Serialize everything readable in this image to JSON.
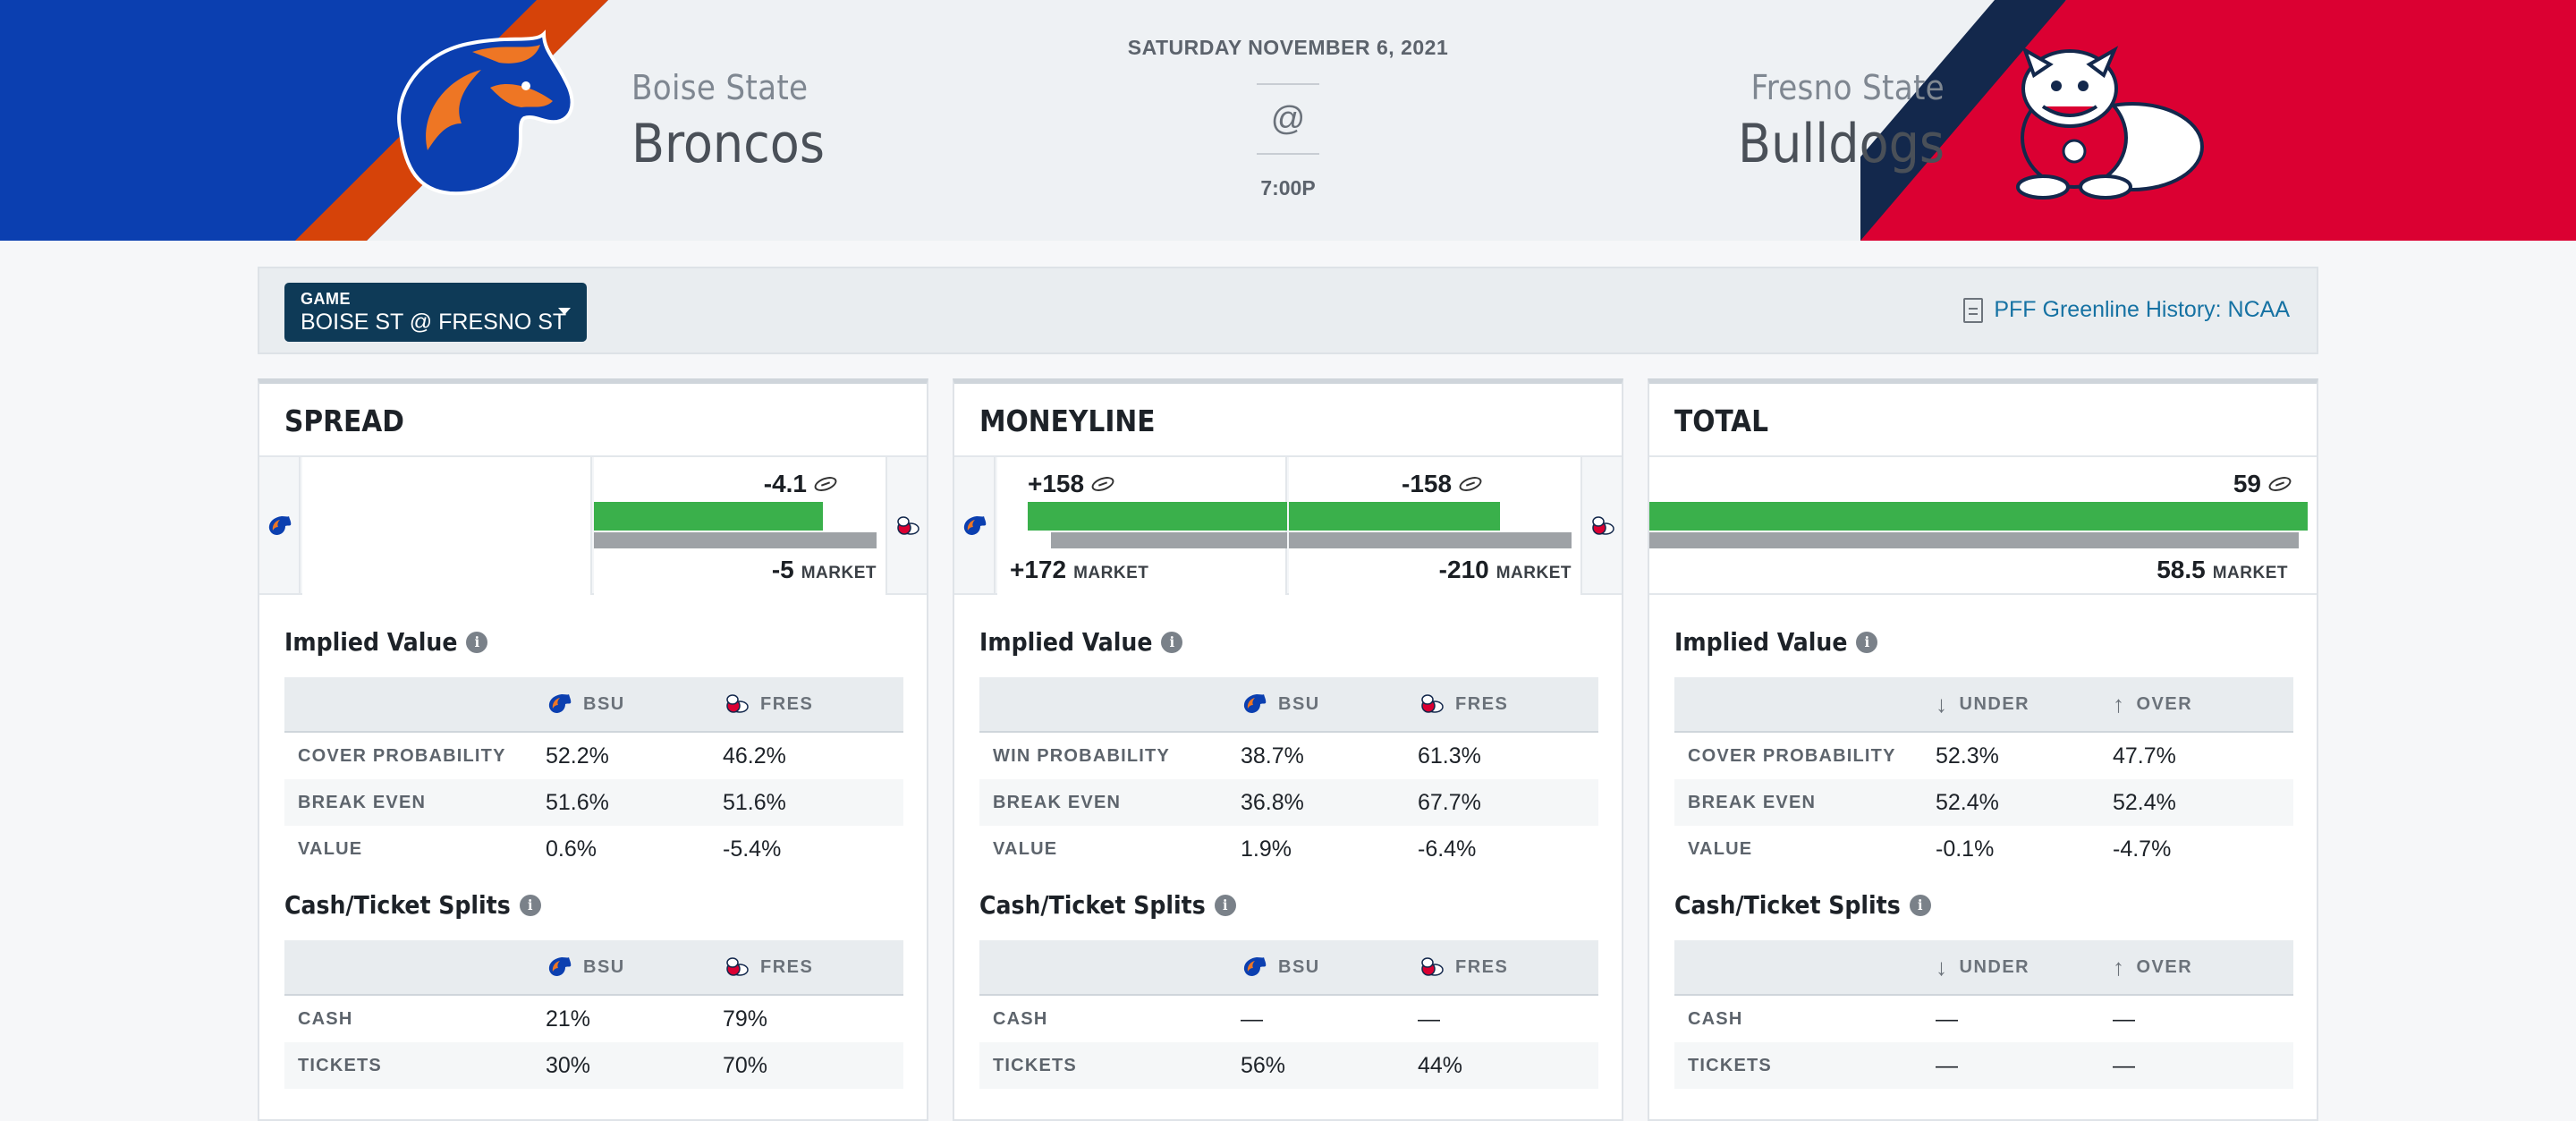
{
  "header": {
    "date": "SATURDAY NOVEMBER 6, 2021",
    "at": "@",
    "time": "7:00P",
    "away": {
      "city": "Boise State",
      "mascot": "Broncos",
      "abbr": "BSU",
      "primary": "#0b3fb0",
      "accent": "#d64309",
      "logo": "bronco-logo-icon"
    },
    "home": {
      "city": "Fresno State",
      "mascot": "Bulldogs",
      "abbr": "FRES",
      "primary": "#db0032",
      "accent": "#13284c",
      "logo": "bulldog-logo-icon"
    }
  },
  "toolbar": {
    "game_label": "GAME",
    "game_value": "BOISE ST @ FRESNO ST",
    "history_link": "PFF Greenline History: NCAA"
  },
  "colors": {
    "greenline": "#3ab04b",
    "market": "#9ea2a6",
    "link": "#1672a3",
    "select_bg": "#0e3a57"
  },
  "cards": {
    "spread": {
      "title": "SPREAD",
      "greenline": "-4.1",
      "market": "-5",
      "market_label": "MARKET",
      "implied": {
        "heading": "Implied Value",
        "cols": [
          "BSU",
          "FRES"
        ],
        "rows": [
          {
            "label": "COVER PROBABILITY",
            "a": "52.2%",
            "b": "46.2%"
          },
          {
            "label": "BREAK EVEN",
            "a": "51.6%",
            "b": "51.6%"
          },
          {
            "label": "VALUE",
            "a": "0.6%",
            "b": "-5.4%"
          }
        ]
      },
      "splits": {
        "heading": "Cash/Ticket Splits",
        "cols": [
          "BSU",
          "FRES"
        ],
        "rows": [
          {
            "label": "CASH",
            "a": "21%",
            "b": "79%"
          },
          {
            "label": "TICKETS",
            "a": "30%",
            "b": "70%"
          }
        ]
      }
    },
    "moneyline": {
      "title": "MONEYLINE",
      "away_greenline": "+158",
      "away_market": "+172",
      "home_greenline": "-158",
      "home_market": "-210",
      "market_label": "MARKET",
      "implied": {
        "heading": "Implied Value",
        "cols": [
          "BSU",
          "FRES"
        ],
        "rows": [
          {
            "label": "WIN PROBABILITY",
            "a": "38.7%",
            "b": "61.3%"
          },
          {
            "label": "BREAK EVEN",
            "a": "36.8%",
            "b": "67.7%"
          },
          {
            "label": "VALUE",
            "a": "1.9%",
            "b": "-6.4%"
          }
        ]
      },
      "splits": {
        "heading": "Cash/Ticket Splits",
        "cols": [
          "BSU",
          "FRES"
        ],
        "rows": [
          {
            "label": "CASH",
            "a": "—",
            "b": "—"
          },
          {
            "label": "TICKETS",
            "a": "56%",
            "b": "44%"
          }
        ]
      }
    },
    "total": {
      "title": "TOTAL",
      "greenline": "59",
      "market": "58.5",
      "market_label": "MARKET",
      "implied": {
        "heading": "Implied Value",
        "cols": [
          "UNDER",
          "OVER"
        ],
        "rows": [
          {
            "label": "COVER PROBABILITY",
            "a": "52.3%",
            "b": "47.7%"
          },
          {
            "label": "BREAK EVEN",
            "a": "52.4%",
            "b": "52.4%"
          },
          {
            "label": "VALUE",
            "a": "-0.1%",
            "b": "-4.7%"
          }
        ]
      },
      "splits": {
        "heading": "Cash/Ticket Splits",
        "cols": [
          "UNDER",
          "OVER"
        ],
        "rows": [
          {
            "label": "CASH",
            "a": "—",
            "b": "—"
          },
          {
            "label": "TICKETS",
            "a": "—",
            "b": "—"
          }
        ]
      }
    }
  }
}
